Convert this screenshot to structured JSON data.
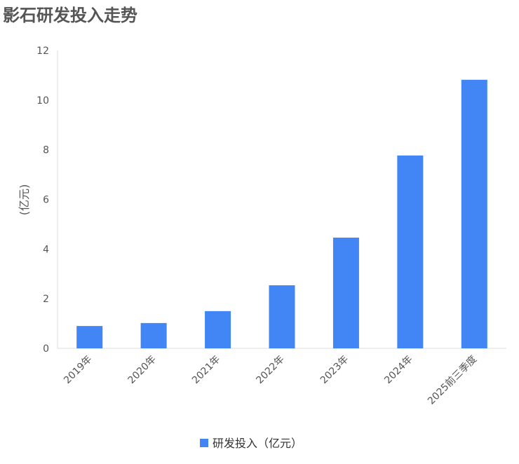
{
  "chart_data": {
    "type": "bar",
    "title": "影石研发投入走势",
    "xlabel": "",
    "ylabel": "(亿元)",
    "ylim": [
      0,
      12
    ],
    "yticks": [
      0,
      2,
      4,
      6,
      8,
      10,
      12
    ],
    "categories": [
      "2019年",
      "2020年",
      "2021年",
      "2022年",
      "2023年",
      "2024年",
      "2025前三季度"
    ],
    "series": [
      {
        "name": "研发投入（亿元）",
        "values": [
          0.9,
          1.02,
          1.5,
          2.54,
          4.46,
          7.77,
          10.82
        ],
        "color": "#4285f4"
      }
    ],
    "grid": false,
    "legend": "bottom"
  }
}
